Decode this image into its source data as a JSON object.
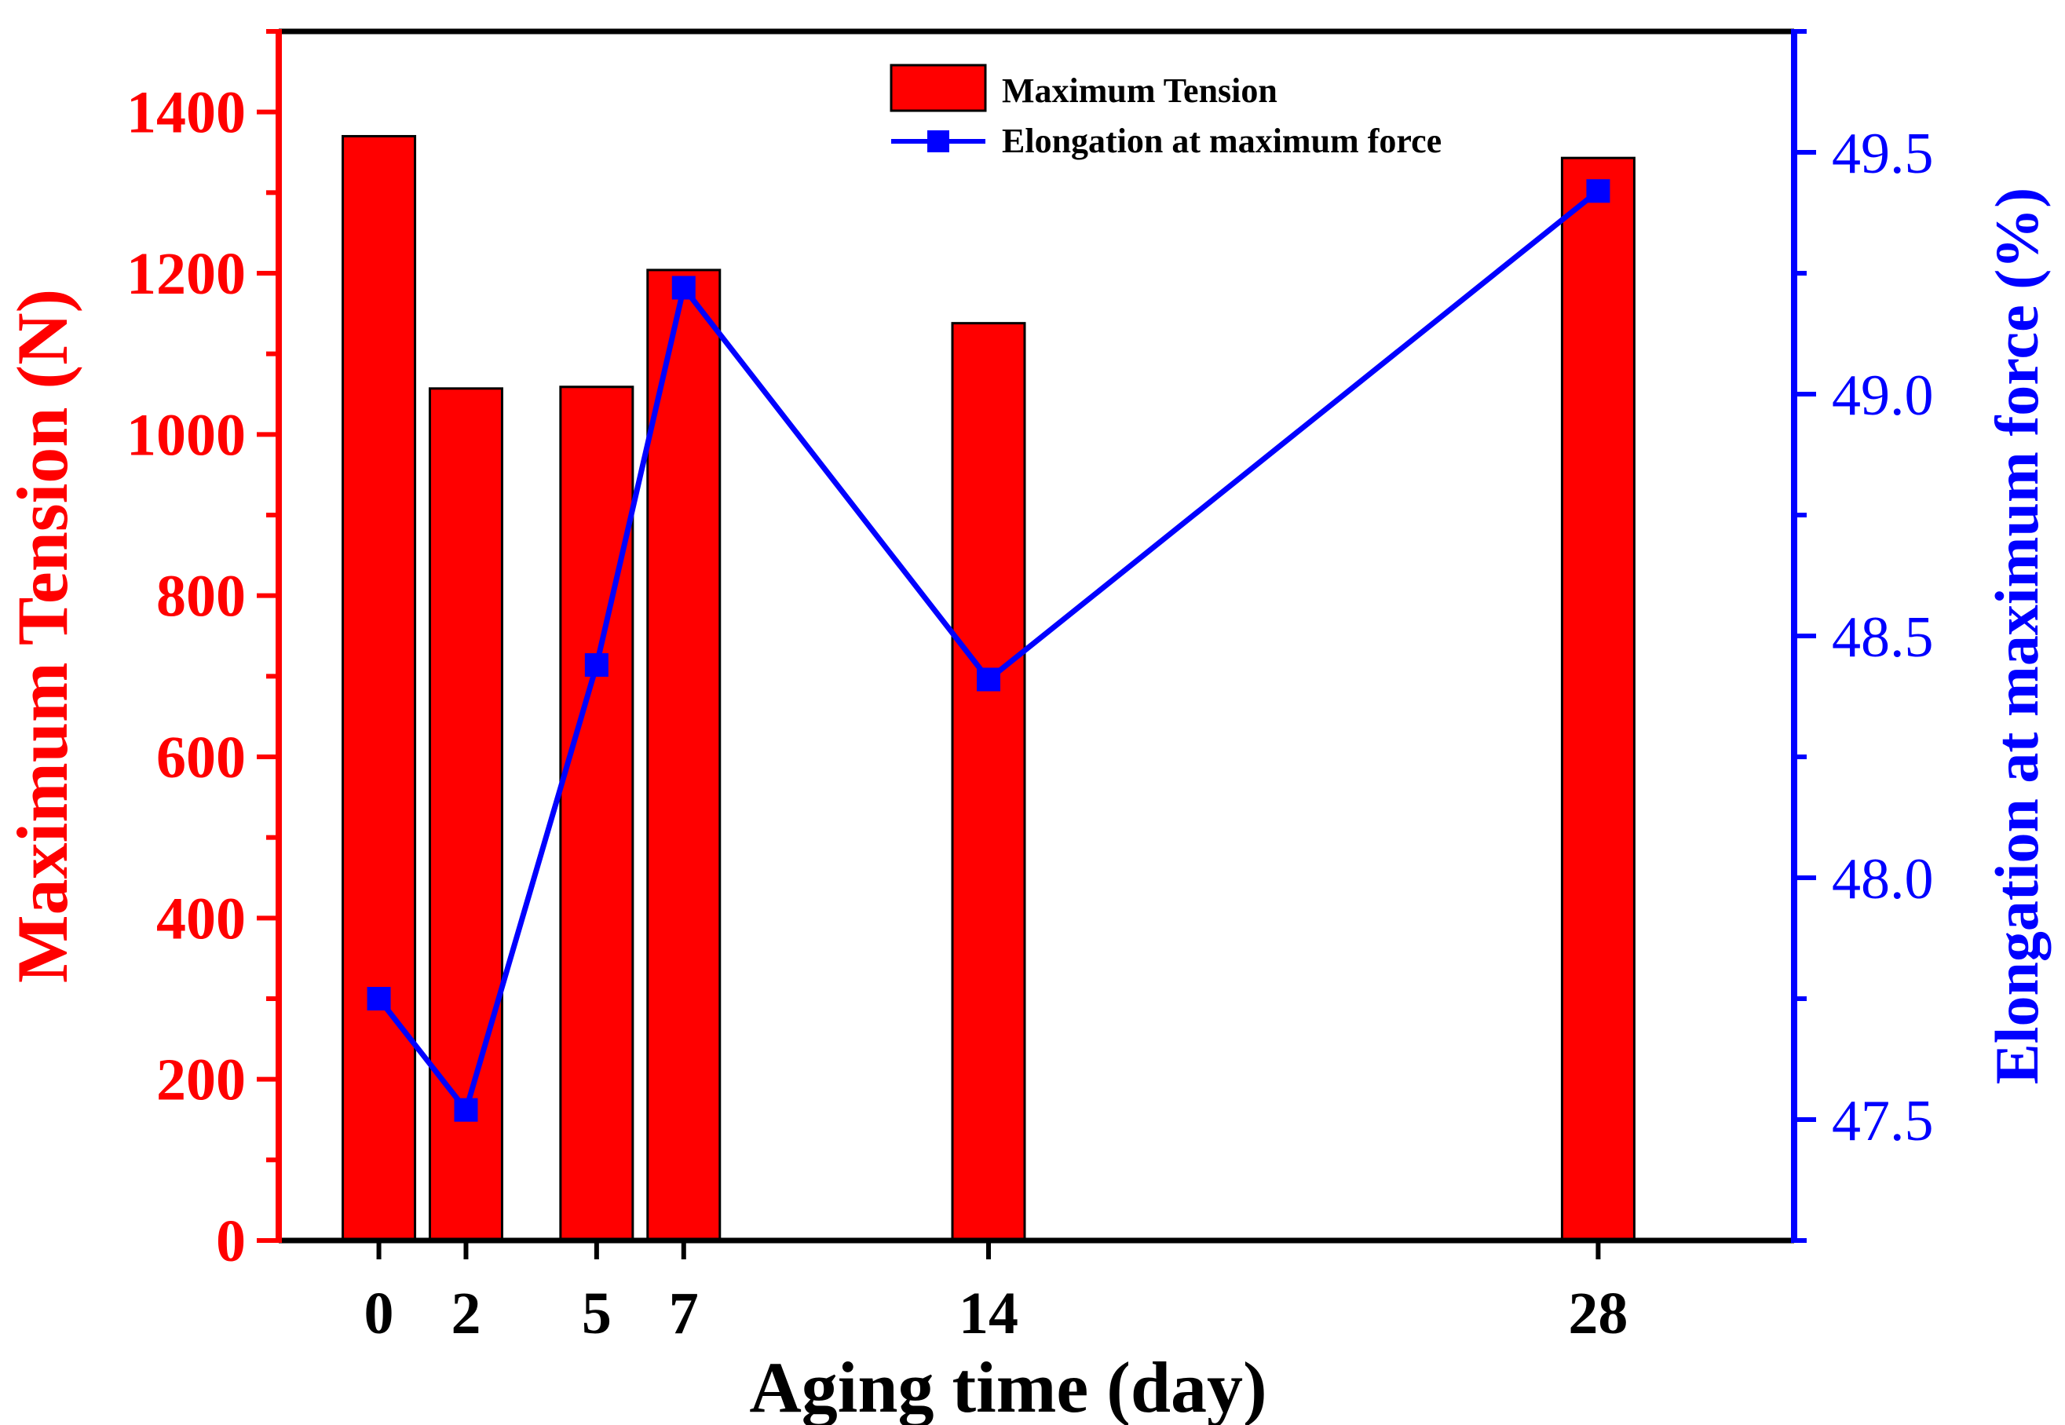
{
  "chart_data": {
    "type": "bar+line",
    "xlabel": "Aging time (day)",
    "x": [
      0,
      2,
      5,
      7,
      14,
      28
    ],
    "x_ticks": [
      "0",
      "2",
      "5",
      "7",
      "14",
      "28"
    ],
    "xlim": [
      -2.3,
      32.5
    ],
    "series": [
      {
        "name": "Maximum Tension",
        "type": "bar",
        "axis": "left",
        "values": [
          1370,
          1057,
          1059,
          1204,
          1138,
          1343
        ]
      },
      {
        "name": "Elongation at maximum force",
        "type": "line",
        "axis": "right",
        "marker": "square",
        "values": [
          47.75,
          47.52,
          48.44,
          49.22,
          48.41,
          49.42
        ]
      }
    ],
    "y_left": {
      "label": "Maximum Tension (N)",
      "lim": [
        0,
        1500
      ],
      "ticks": [
        0,
        200,
        400,
        600,
        800,
        1000,
        1200,
        1400
      ]
    },
    "y_right": {
      "label": "Elongation at maximum force (%)",
      "lim": [
        47.25,
        49.75
      ],
      "ticks": [
        47.5,
        48.0,
        48.5,
        49.0,
        49.5
      ],
      "tick_labels": [
        "47.5",
        "48.0",
        "48.5",
        "49.0",
        "49.5"
      ]
    },
    "legend": [
      "Maximum Tension",
      "Elongation at maximum force"
    ],
    "legend_position": "top-center",
    "grid": false,
    "colors": {
      "bar": "#ff0000",
      "line": "#0000ff",
      "left_axis": "#ff0000",
      "right_axis": "#0000ff",
      "frame": "#000000"
    }
  }
}
